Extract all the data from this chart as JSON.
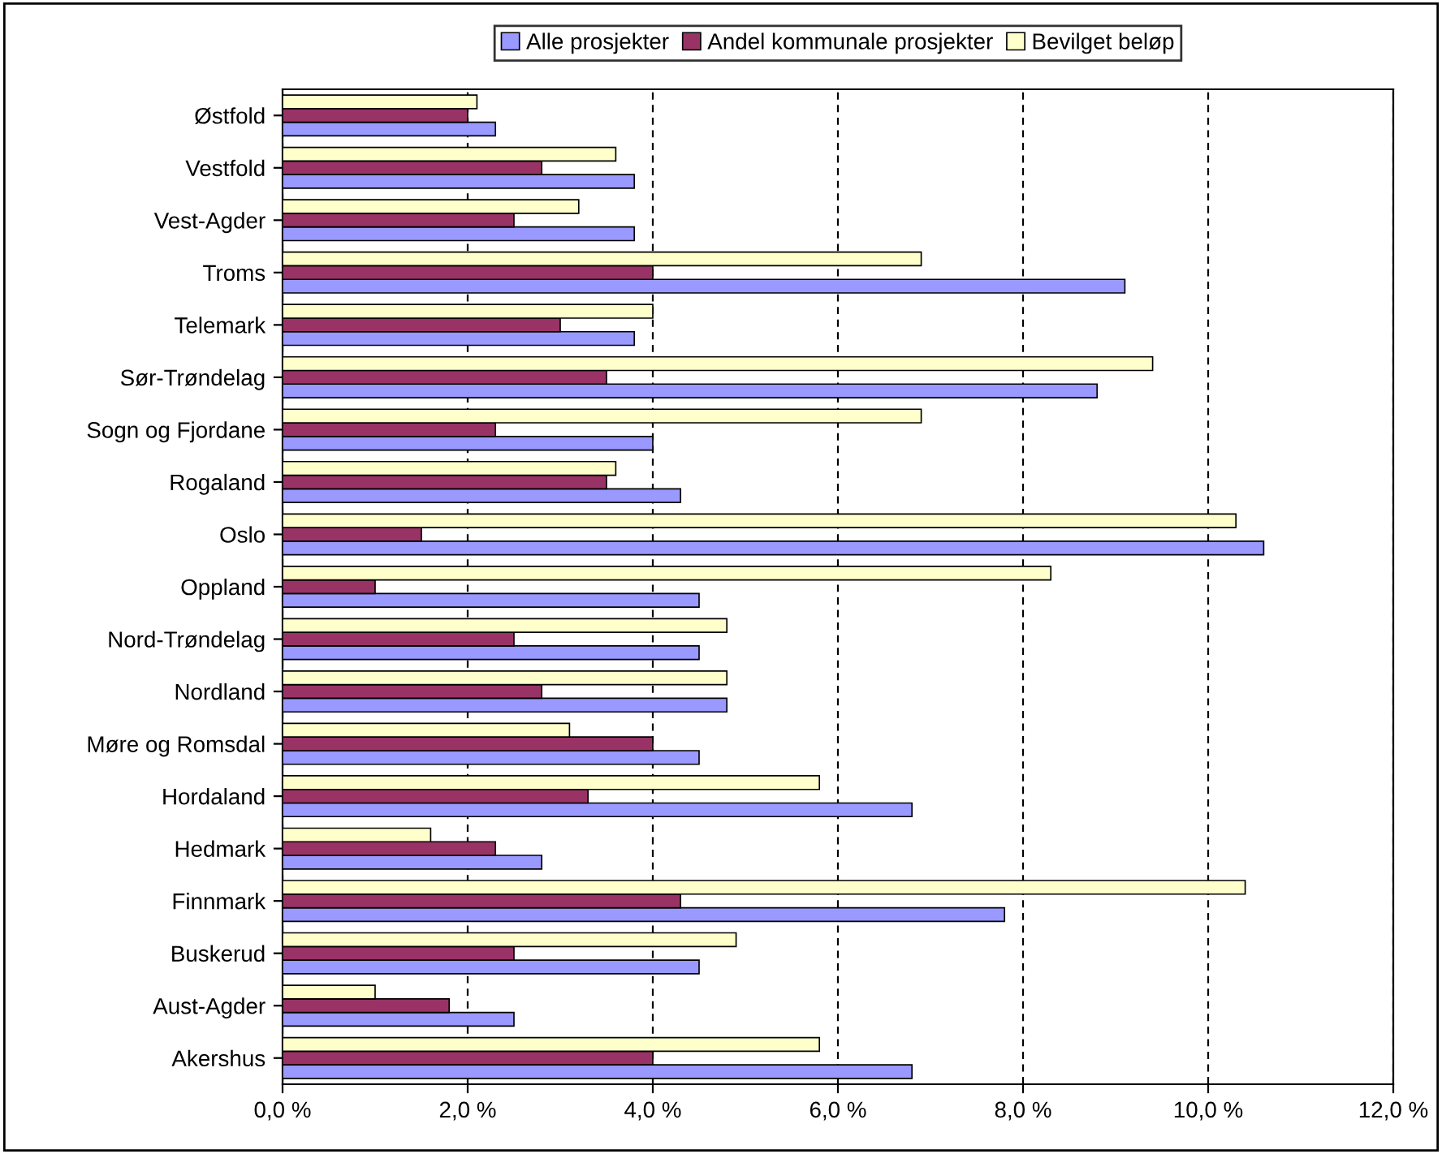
{
  "chart_data": {
    "type": "bar",
    "orientation": "horizontal",
    "categories": [
      "Østfold",
      "Vestfold",
      "Vest-Agder",
      "Troms",
      "Telemark",
      "Sør-Trøndelag",
      "Sogn og Fjordane",
      "Rogaland",
      "Oslo",
      "Oppland",
      "Nord-Trøndelag",
      "Nordland",
      "Møre og Romsdal",
      "Hordaland",
      "Hedmark",
      "Finnmark",
      "Buskerud",
      "Aust-Agder",
      "Akershus"
    ],
    "series": [
      {
        "name": "Alle prosjekter",
        "color": "#9999ff",
        "values": [
          2.3,
          3.8,
          3.8,
          9.1,
          3.8,
          8.8,
          4.0,
          4.3,
          10.6,
          4.5,
          4.5,
          4.8,
          4.5,
          6.8,
          2.8,
          7.8,
          4.5,
          2.5,
          6.8
        ]
      },
      {
        "name": "Andel kommunale prosjekter",
        "color": "#993366",
        "values": [
          2.0,
          2.8,
          2.5,
          4.0,
          3.0,
          3.5,
          2.3,
          3.5,
          1.5,
          1.0,
          2.5,
          2.8,
          4.0,
          3.3,
          2.3,
          4.3,
          2.5,
          1.8,
          4.0
        ]
      },
      {
        "name": "Bevilget beløp",
        "color": "#ffffcc",
        "values": [
          2.1,
          3.6,
          3.2,
          6.9,
          4.0,
          9.4,
          6.9,
          3.6,
          10.3,
          8.3,
          4.8,
          4.8,
          3.1,
          5.8,
          1.6,
          10.4,
          4.9,
          1.0,
          5.8
        ]
      }
    ],
    "xlim": [
      0,
      12
    ],
    "xticks": [
      {
        "value": 0,
        "label": "0,0 %"
      },
      {
        "value": 2,
        "label": "2,0 %"
      },
      {
        "value": 4,
        "label": "4,0 %"
      },
      {
        "value": 6,
        "label": "6,0 %"
      },
      {
        "value": 8,
        "label": "8,0 %"
      },
      {
        "value": 10,
        "label": "10,0 %"
      },
      {
        "value": 12,
        "label": "12,0 %"
      }
    ],
    "grid": "x",
    "legend": "top"
  }
}
